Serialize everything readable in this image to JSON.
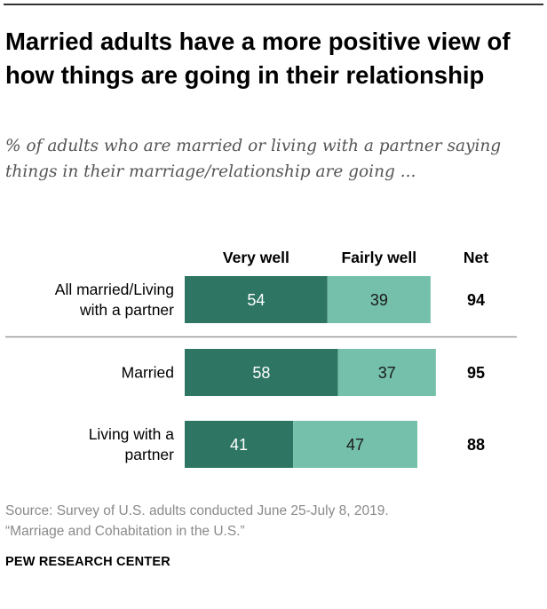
{
  "chart_data": {
    "type": "bar",
    "stacked": true,
    "orientation": "horizontal",
    "title": "Married adults have a more positive view of how things are going in their relationship",
    "subtitle": "% of adults who are married or living with a partner saying things in their marriage/relationship are going ...",
    "categories": [
      [
        "All married/Living",
        "with a partner"
      ],
      [
        "Married"
      ],
      [
        "Living with a",
        "partner"
      ]
    ],
    "series": [
      {
        "name": "Very well",
        "values": [
          54,
          58,
          41
        ],
        "color": "#2e7663"
      },
      {
        "name": "Fairly well",
        "values": [
          39,
          37,
          47
        ],
        "color": "#75c0aa"
      }
    ],
    "net": {
      "label": "Net",
      "values": [
        94,
        95,
        88
      ]
    },
    "xlim": [
      0,
      100
    ],
    "grid": false,
    "legend": "top"
  },
  "source": {
    "line1": "Source: Survey of U.S. adults conducted June 25-July 8, 2019.",
    "line2": "“Marriage and Cohabitation in the U.S.”"
  },
  "org": "PEW RESEARCH CENTER"
}
